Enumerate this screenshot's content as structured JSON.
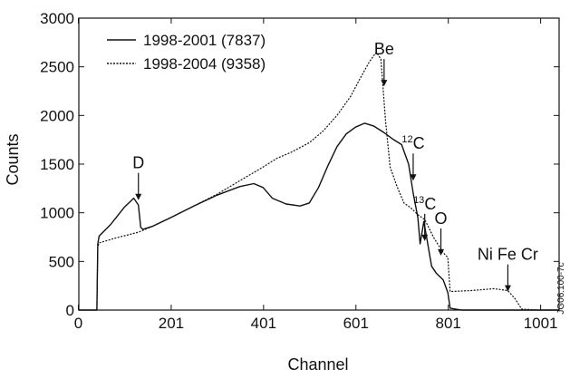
{
  "figure_id": "JG06.100-7c",
  "chart_data": {
    "type": "line",
    "xlabel": "Channel",
    "ylabel": "Counts",
    "xlim": [
      1,
      1041
    ],
    "ylim": [
      0,
      3000
    ],
    "x_ticks": [
      0,
      201,
      401,
      601,
      801,
      1001
    ],
    "y_ticks": [
      0,
      500,
      1000,
      1500,
      2000,
      2500,
      3000
    ],
    "grid": false,
    "legend_position": "top-left",
    "series": [
      {
        "name": "1998-2001 (7837)",
        "line_style": "solid",
        "color": "#111111",
        "x": [
          1,
          40,
          42,
          45,
          70,
          100,
          120,
          130,
          135,
          140,
          160,
          200,
          250,
          300,
          350,
          380,
          400,
          420,
          450,
          480,
          500,
          520,
          540,
          560,
          580,
          600,
          620,
          640,
          660,
          680,
          700,
          715,
          725,
          735,
          740,
          748,
          755,
          765,
          775,
          790,
          800,
          805,
          830,
          880,
          930,
          980,
          1040
        ],
        "y": [
          0,
          0,
          680,
          760,
          880,
          1060,
          1150,
          1080,
          850,
          830,
          860,
          950,
          1070,
          1180,
          1270,
          1300,
          1260,
          1150,
          1090,
          1070,
          1100,
          1260,
          1480,
          1680,
          1810,
          1880,
          1920,
          1890,
          1830,
          1760,
          1700,
          1500,
          1200,
          950,
          680,
          910,
          720,
          450,
          380,
          310,
          180,
          20,
          0,
          0,
          0,
          0,
          0
        ]
      },
      {
        "name": "1998-2004 (9358)",
        "line_style": "dotted",
        "color": "#111111",
        "x": [
          1,
          40,
          42,
          45,
          80,
          130,
          160,
          200,
          250,
          300,
          350,
          400,
          430,
          460,
          500,
          530,
          560,
          590,
          610,
          630,
          645,
          655,
          665,
          675,
          690,
          705,
          720,
          735,
          750,
          770,
          790,
          800,
          805,
          850,
          900,
          930,
          945,
          960,
          1000,
          1040
        ],
        "y": [
          0,
          0,
          650,
          690,
          740,
          800,
          860,
          950,
          1070,
          1190,
          1330,
          1470,
          1560,
          1620,
          1720,
          1840,
          2000,
          2200,
          2380,
          2550,
          2650,
          2580,
          1950,
          1470,
          1270,
          1100,
          1050,
          980,
          930,
          740,
          590,
          540,
          190,
          200,
          220,
          200,
          120,
          10,
          0,
          0
        ]
      }
    ],
    "annotations": [
      {
        "text": "D",
        "sup": "",
        "x": 130,
        "y": 1130
      },
      {
        "text": "Be",
        "sup": "",
        "x": 662,
        "y": 2300
      },
      {
        "text": "C",
        "sup": "12",
        "x": 725,
        "y": 1330
      },
      {
        "text": "C",
        "sup": "13",
        "x": 750,
        "y": 710
      },
      {
        "text": "O",
        "sup": "",
        "x": 785,
        "y": 560
      },
      {
        "text": "Ni Fe Cr",
        "sup": "",
        "x": 930,
        "y": 190
      }
    ]
  }
}
